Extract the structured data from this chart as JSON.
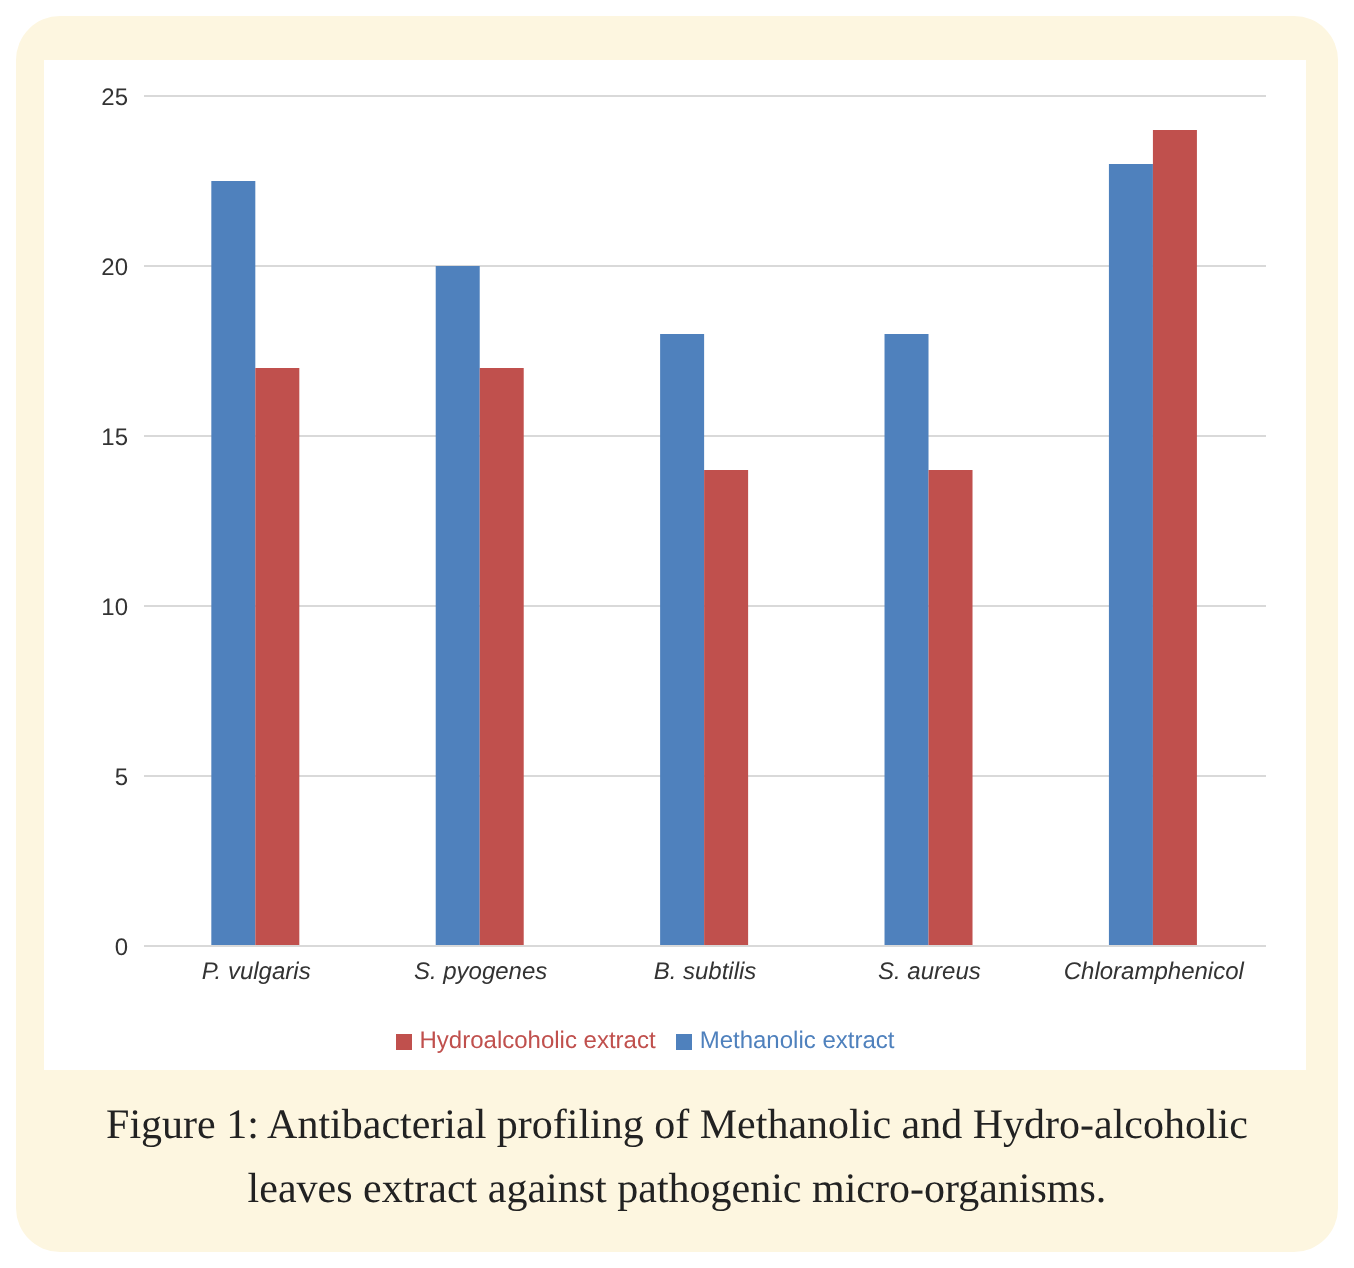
{
  "chart_data": {
    "type": "bar",
    "categories": [
      "P. vulgaris",
      "S. pyogenes",
      "B. subtilis",
      "S. aureus",
      "Chloramphenicol"
    ],
    "series": [
      {
        "name": "Methanolic extract",
        "color": "#4f81bd",
        "values": [
          22.5,
          20,
          18,
          18,
          23
        ]
      },
      {
        "name": "Hydroalcoholic extract",
        "color": "#c0504d",
        "values": [
          17,
          17,
          14,
          14,
          24
        ]
      }
    ],
    "ylim": [
      0,
      25
    ],
    "yticks": [
      0,
      5,
      10,
      15,
      20,
      25
    ],
    "grid": "y",
    "legend": "bottom",
    "annotations": [
      "Figure 1: Antibacterial profiling of Methanolic and Hydro-alcoholic leaves extract against pathogenic micro-organisms."
    ]
  }
}
